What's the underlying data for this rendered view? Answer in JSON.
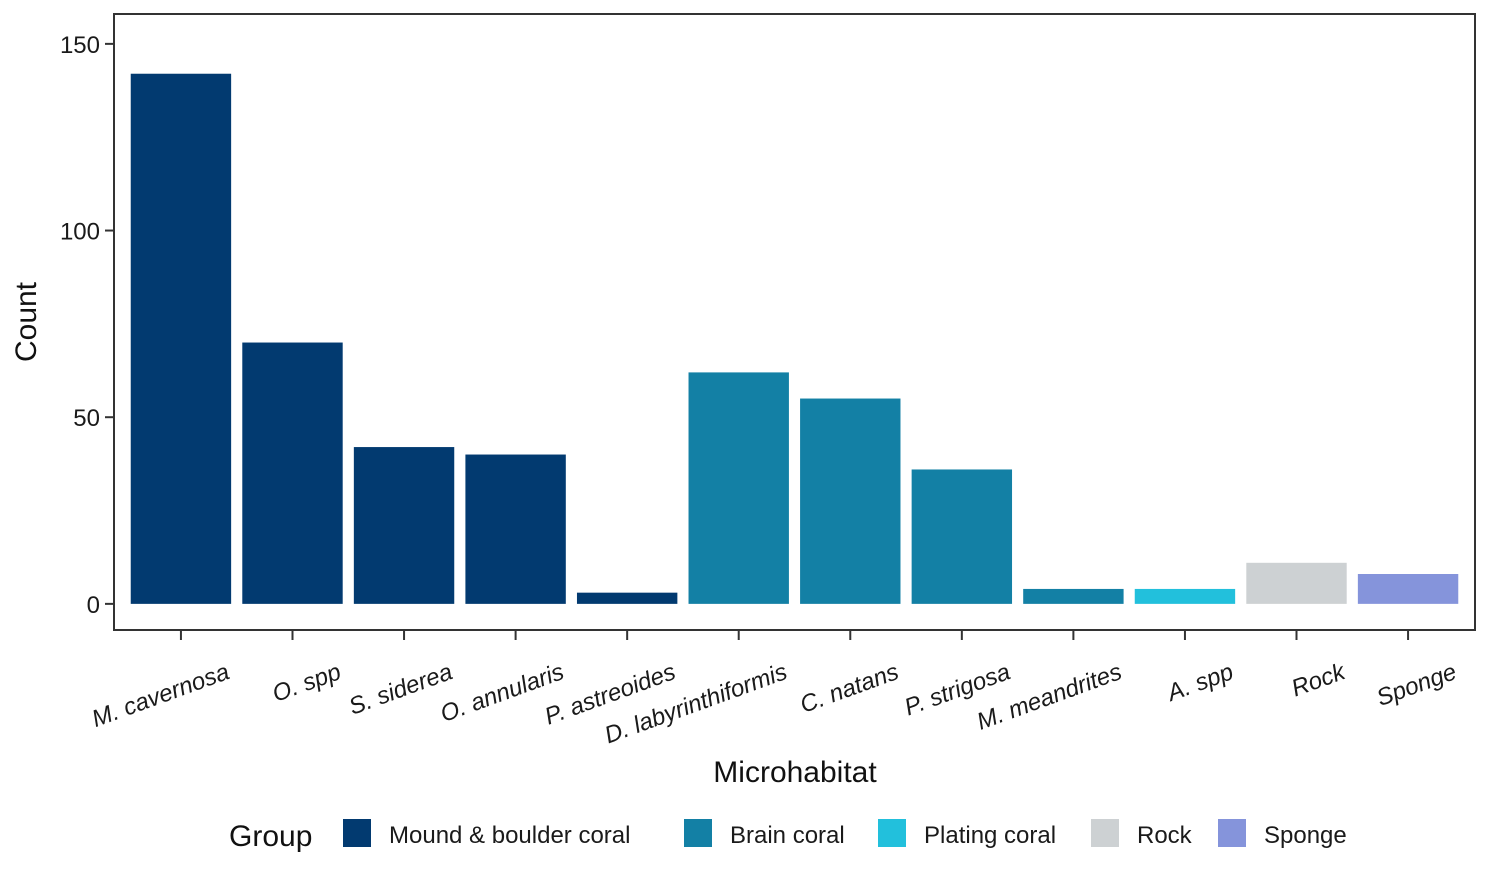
{
  "chart_data": {
    "type": "bar",
    "xlabel": "Microhabitat",
    "ylabel": "Count",
    "ylim": [
      -7,
      158
    ],
    "yticks": [
      0,
      50,
      100,
      150
    ],
    "categories": [
      "M. cavernosa",
      "O. spp",
      "S. siderea",
      "O. annularis",
      "P. astreoides",
      "D. labyrinthiformis",
      "C. natans",
      "P. strigosa",
      "M. meandrites",
      "A. spp",
      "Rock",
      "Sponge"
    ],
    "italic_categories": [
      true,
      true,
      true,
      true,
      true,
      true,
      true,
      true,
      true,
      true,
      false,
      false
    ],
    "values": [
      142,
      70,
      42,
      40,
      3,
      62,
      55,
      36,
      4,
      4,
      11,
      8
    ],
    "groups": [
      "Mound & boulder coral",
      "Mound & boulder coral",
      "Mound & boulder coral",
      "Mound & boulder coral",
      "Mound & boulder coral",
      "Brain coral",
      "Brain coral",
      "Brain coral",
      "Brain coral",
      "Plating coral",
      "Rock",
      "Sponge"
    ],
    "legend": {
      "title": "Group",
      "position": "bottom",
      "items": [
        {
          "name": "Mound & boulder coral",
          "color": "#023a70"
        },
        {
          "name": "Brain coral",
          "color": "#1380a5"
        },
        {
          "name": "Plating coral",
          "color": "#22c0dc"
        },
        {
          "name": "Rock",
          "color": "#cdd1d3"
        },
        {
          "name": "Sponge",
          "color": "#8594db"
        }
      ]
    },
    "grid": false
  }
}
